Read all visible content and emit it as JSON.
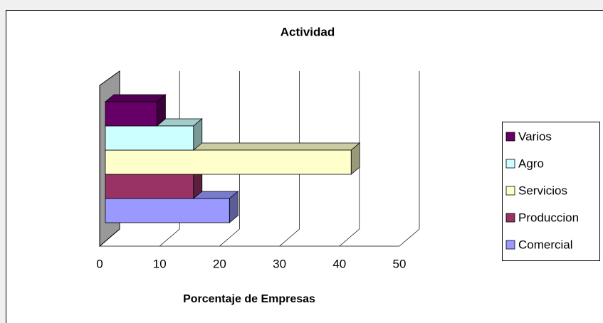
{
  "chart_data": {
    "type": "bar",
    "orientation": "horizontal",
    "title": "Actividad",
    "xlabel": "Porcentaje de Empresas",
    "categories": [
      "Comercial",
      "Produccion",
      "Servicios",
      "Agro",
      "Varios"
    ],
    "values": [
      20.7,
      14.7,
      41.0,
      14.7,
      8.6
    ],
    "colors": [
      "#9999ff",
      "#993366",
      "#ffffcc",
      "#ccffff",
      "#660066"
    ],
    "xlim": [
      0,
      50
    ],
    "xticks": [
      0,
      10,
      20,
      30,
      40,
      50
    ],
    "grid": true,
    "legend": "right"
  }
}
